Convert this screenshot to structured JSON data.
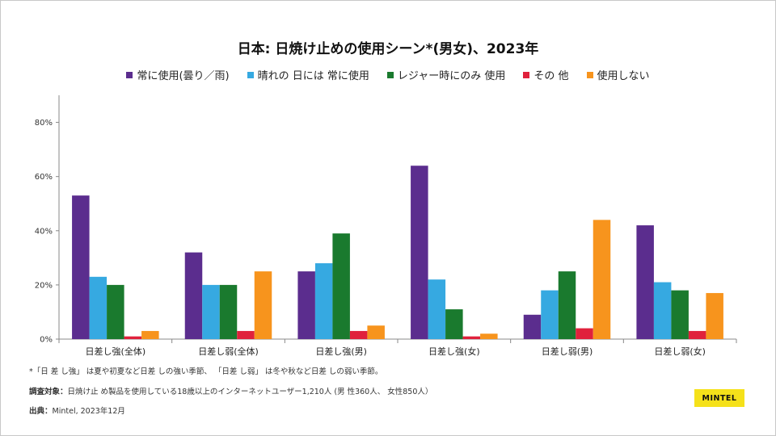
{
  "chart_data": {
    "type": "bar",
    "title": "日本: 日焼け止めの使用シーン*(男女)、2023年",
    "categories": [
      "日差し強(全体)",
      "日差し弱(全体)",
      "日差し強(男)",
      "日差し強(女)",
      "日差し弱(男)",
      "日差し弱(女)"
    ],
    "series": [
      {
        "name": "常に使用(曇り／雨)",
        "color": "#5b2d8e",
        "values": [
          53,
          32,
          25,
          64,
          9,
          42
        ]
      },
      {
        "name": "晴れの 日には 常に使用",
        "color": "#36a9e1",
        "values": [
          23,
          20,
          28,
          22,
          18,
          21
        ]
      },
      {
        "name": "レジャー時にのみ 使用",
        "color": "#1a7a2e",
        "values": [
          20,
          20,
          39,
          11,
          25,
          18
        ]
      },
      {
        "name": "その 他",
        "color": "#e0213c",
        "values": [
          1,
          3,
          3,
          1,
          4,
          3
        ]
      },
      {
        "name": "使用しない",
        "color": "#f7941d",
        "values": [
          3,
          25,
          5,
          2,
          44,
          17
        ]
      }
    ],
    "yticks": [
      "0%",
      "20%",
      "40%",
      "60%",
      "80%"
    ],
    "ytick_values": [
      0,
      20,
      40,
      60,
      80
    ],
    "ylim": [
      0,
      90
    ],
    "xlabel": "",
    "ylabel": ""
  },
  "notes": {
    "footnote": "*「日 差 し強」 は夏や初夏など日差 しの強い季節、 「日差 し弱」 は冬や秋など日差 しの弱い季節。",
    "sample_label": "調査対象：",
    "sample_text": "日焼け止 め製品を使用している18歳以上のインターネットユーザー1,210人 (男 性360人、 女性850人）",
    "source_label": "出典：",
    "source_text": "Mintel, 2023年12月"
  },
  "brand": {
    "label": "MINTEL"
  }
}
